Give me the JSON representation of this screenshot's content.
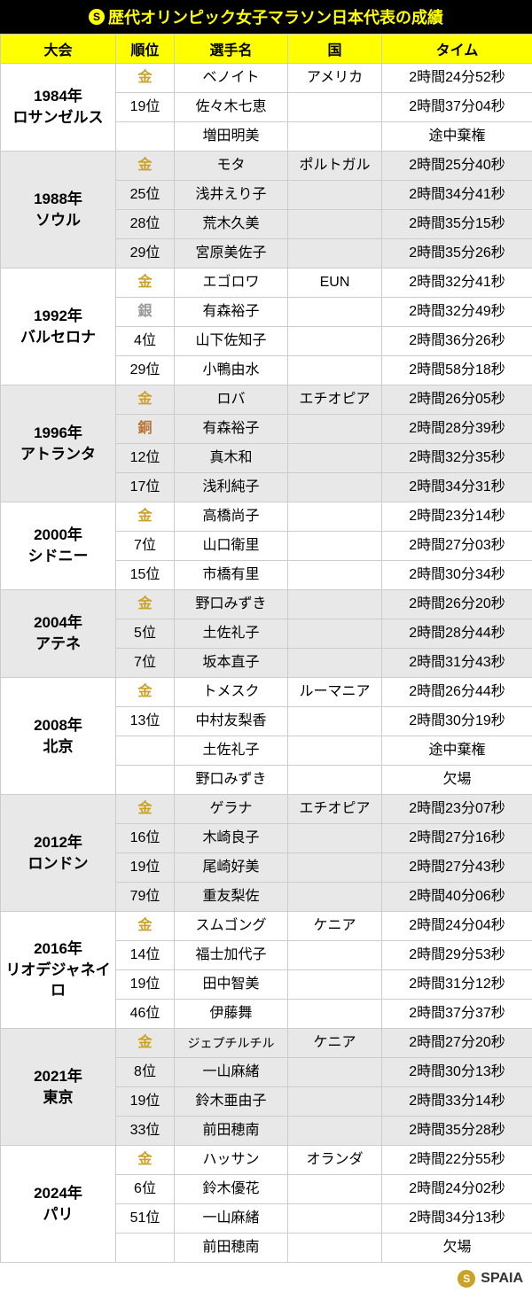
{
  "title": "歴代オリンピック女子マラソン日本代表の成績",
  "footer": "SPAIA",
  "columns": [
    "大会",
    "順位",
    "選手名",
    "国",
    "タイム"
  ],
  "colors": {
    "title_bg": "#000000",
    "title_fg": "#ffff00",
    "header_bg": "#ffff00",
    "alt_row_bg": "#e8e8e8",
    "gold": "#c9a227",
    "silver": "#999999",
    "bronze": "#b87333",
    "border": "#cccccc"
  },
  "events": [
    {
      "label": "1984年\nロサンゼルス",
      "alt": false,
      "rows": [
        {
          "rank": "金",
          "medal": "gold",
          "name": "ベノイト",
          "country": "アメリカ",
          "time": "2時間24分52秒"
        },
        {
          "rank": "19位",
          "name": "佐々木七恵",
          "country": "",
          "time": "2時間37分04秒"
        },
        {
          "rank": "",
          "name": "増田明美",
          "country": "",
          "time": "途中棄権"
        }
      ]
    },
    {
      "label": "1988年\nソウル",
      "alt": true,
      "rows": [
        {
          "rank": "金",
          "medal": "gold",
          "name": "モタ",
          "country": "ポルトガル",
          "time": "2時間25分40秒"
        },
        {
          "rank": "25位",
          "name": "浅井えり子",
          "country": "",
          "time": "2時間34分41秒"
        },
        {
          "rank": "28位",
          "name": "荒木久美",
          "country": "",
          "time": "2時間35分15秒"
        },
        {
          "rank": "29位",
          "name": "宮原美佐子",
          "country": "",
          "time": "2時間35分26秒"
        }
      ]
    },
    {
      "label": "1992年\nバルセロナ",
      "alt": false,
      "rows": [
        {
          "rank": "金",
          "medal": "gold",
          "name": "エゴロワ",
          "country": "EUN",
          "time": "2時間32分41秒"
        },
        {
          "rank": "銀",
          "medal": "silver",
          "name": "有森裕子",
          "country": "",
          "time": "2時間32分49秒"
        },
        {
          "rank": "4位",
          "name": "山下佐知子",
          "country": "",
          "time": "2時間36分26秒"
        },
        {
          "rank": "29位",
          "name": "小鴨由水",
          "country": "",
          "time": "2時間58分18秒"
        }
      ]
    },
    {
      "label": "1996年\nアトランタ",
      "alt": true,
      "rows": [
        {
          "rank": "金",
          "medal": "gold",
          "name": "ロバ",
          "country": "エチオピア",
          "time": "2時間26分05秒"
        },
        {
          "rank": "銅",
          "medal": "bronze",
          "name": "有森裕子",
          "country": "",
          "time": "2時間28分39秒"
        },
        {
          "rank": "12位",
          "name": "真木和",
          "country": "",
          "time": "2時間32分35秒"
        },
        {
          "rank": "17位",
          "name": "浅利純子",
          "country": "",
          "time": "2時間34分31秒"
        }
      ]
    },
    {
      "label": "2000年\nシドニー",
      "alt": false,
      "rows": [
        {
          "rank": "金",
          "medal": "gold",
          "name": "高橋尚子",
          "country": "",
          "time": "2時間23分14秒"
        },
        {
          "rank": "7位",
          "name": "山口衛里",
          "country": "",
          "time": "2時間27分03秒"
        },
        {
          "rank": "15位",
          "name": "市橋有里",
          "country": "",
          "time": "2時間30分34秒"
        }
      ]
    },
    {
      "label": "2004年\nアテネ",
      "alt": true,
      "rows": [
        {
          "rank": "金",
          "medal": "gold",
          "name": "野口みずき",
          "country": "",
          "time": "2時間26分20秒"
        },
        {
          "rank": "5位",
          "name": "土佐礼子",
          "country": "",
          "time": "2時間28分44秒"
        },
        {
          "rank": "7位",
          "name": "坂本直子",
          "country": "",
          "time": "2時間31分43秒"
        }
      ]
    },
    {
      "label": "2008年\n北京",
      "alt": false,
      "rows": [
        {
          "rank": "金",
          "medal": "gold",
          "name": "トメスク",
          "country": "ルーマニア",
          "time": "2時間26分44秒"
        },
        {
          "rank": "13位",
          "name": "中村友梨香",
          "country": "",
          "time": "2時間30分19秒"
        },
        {
          "rank": "",
          "name": "土佐礼子",
          "country": "",
          "time": "途中棄権"
        },
        {
          "rank": "",
          "name": "野口みずき",
          "country": "",
          "time": "欠場"
        }
      ]
    },
    {
      "label": "2012年\nロンドン",
      "alt": true,
      "rows": [
        {
          "rank": "金",
          "medal": "gold",
          "name": "ゲラナ",
          "country": "エチオピア",
          "time": "2時間23分07秒"
        },
        {
          "rank": "16位",
          "name": "木崎良子",
          "country": "",
          "time": "2時間27分16秒"
        },
        {
          "rank": "19位",
          "name": "尾崎好美",
          "country": "",
          "time": "2時間27分43秒"
        },
        {
          "rank": "79位",
          "name": "重友梨佐",
          "country": "",
          "time": "2時間40分06秒"
        }
      ]
    },
    {
      "label": "2016年\nリオデジャネイロ",
      "alt": false,
      "label_small": true,
      "rows": [
        {
          "rank": "金",
          "medal": "gold",
          "name": "スムゴング",
          "country": "ケニア",
          "time": "2時間24分04秒"
        },
        {
          "rank": "14位",
          "name": "福士加代子",
          "country": "",
          "time": "2時間29分53秒"
        },
        {
          "rank": "19位",
          "name": "田中智美",
          "country": "",
          "time": "2時間31分12秒"
        },
        {
          "rank": "46位",
          "name": "伊藤舞",
          "country": "",
          "time": "2時間37分37秒"
        }
      ]
    },
    {
      "label": "2021年\n東京",
      "alt": true,
      "rows": [
        {
          "rank": "金",
          "medal": "gold",
          "name": "ジェプチルチル",
          "name_small": true,
          "country": "ケニア",
          "time": "2時間27分20秒"
        },
        {
          "rank": "8位",
          "name": "一山麻緒",
          "country": "",
          "time": "2時間30分13秒"
        },
        {
          "rank": "19位",
          "name": "鈴木亜由子",
          "country": "",
          "time": "2時間33分14秒"
        },
        {
          "rank": "33位",
          "name": "前田穂南",
          "country": "",
          "time": "2時間35分28秒"
        }
      ]
    },
    {
      "label": "2024年\nパリ",
      "alt": false,
      "rows": [
        {
          "rank": "金",
          "medal": "gold",
          "name": "ハッサン",
          "country": "オランダ",
          "time": "2時間22分55秒"
        },
        {
          "rank": "6位",
          "name": "鈴木優花",
          "country": "",
          "time": "2時間24分02秒"
        },
        {
          "rank": "51位",
          "name": "一山麻緒",
          "country": "",
          "time": "2時間34分13秒"
        },
        {
          "rank": "",
          "name": "前田穂南",
          "country": "",
          "time": "欠場"
        }
      ]
    }
  ]
}
